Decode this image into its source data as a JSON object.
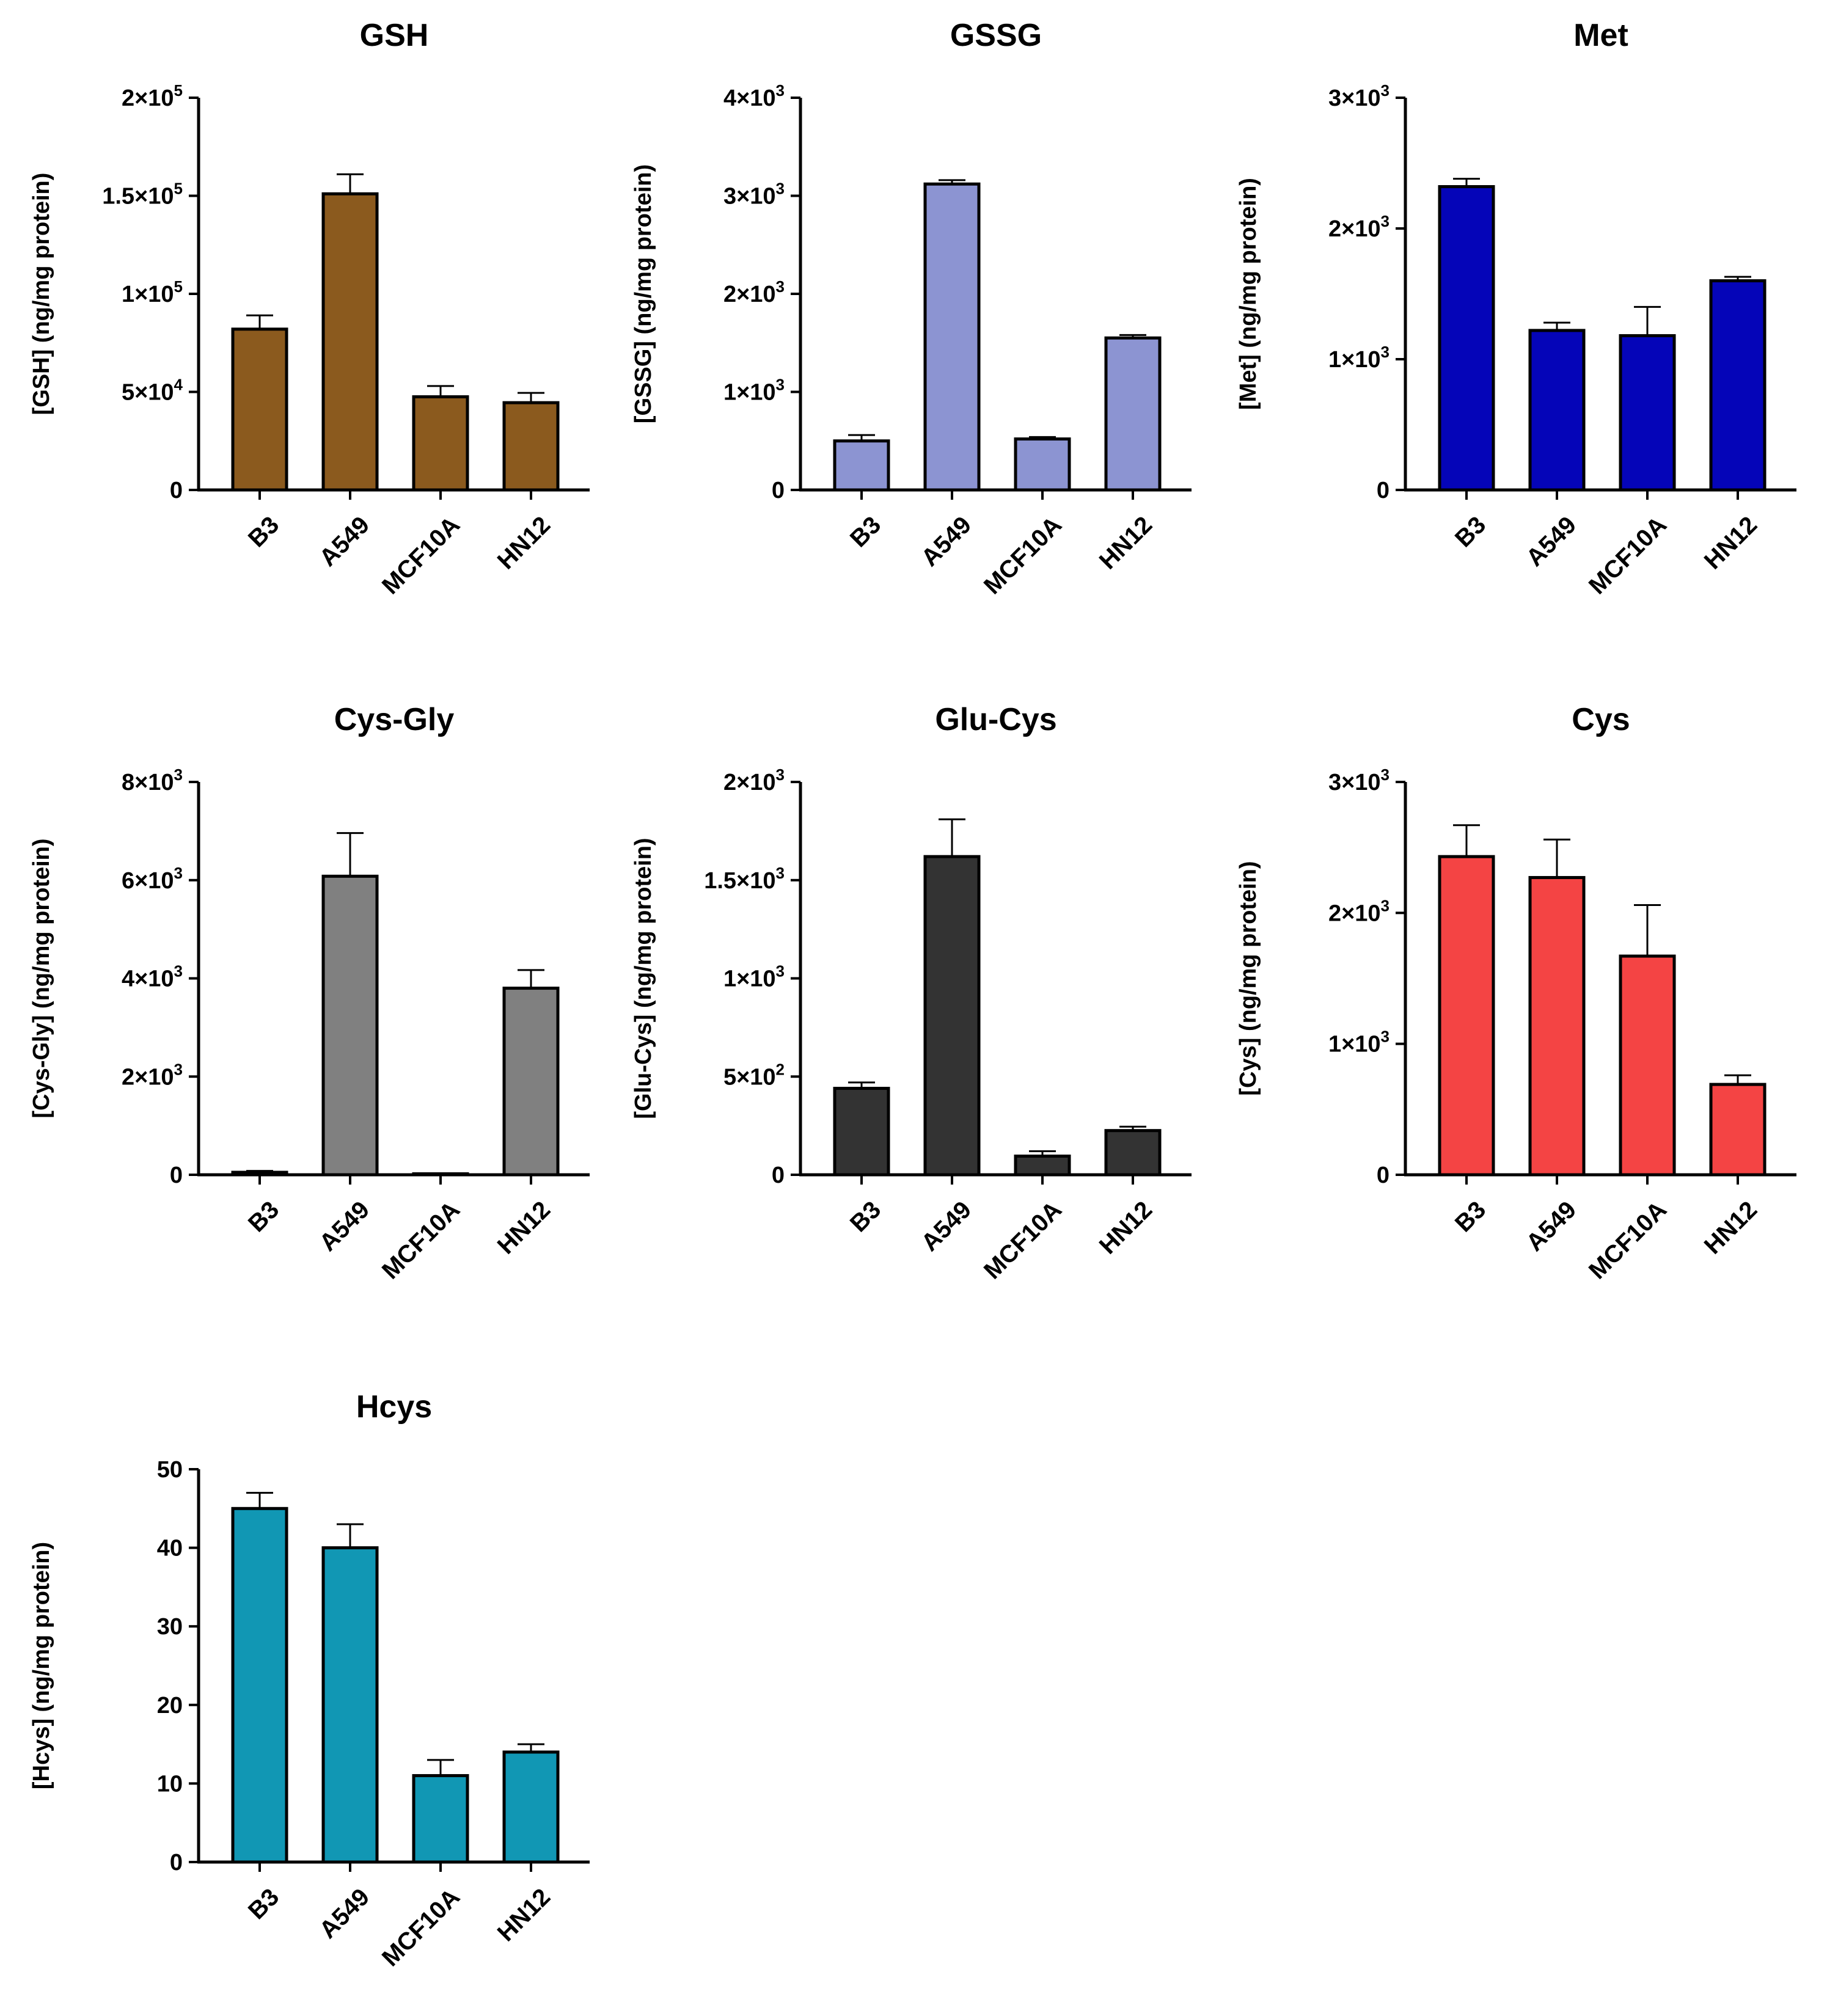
{
  "chart_data": [
    {
      "type": "bar",
      "title": "GSH",
      "ylabel": "[GSH] (ng/mg protein)",
      "categories": [
        "B3",
        "A549",
        "MCF10A",
        "HN12"
      ],
      "values": [
        82000,
        151000,
        47500,
        44500
      ],
      "errors": [
        7000,
        10000,
        5500,
        5000
      ],
      "ylim": [
        0,
        200000
      ],
      "yticks": [
        0,
        50000,
        100000,
        150000,
        200000
      ],
      "ytick_labels": [
        {
          "base": "0",
          "sup": ""
        },
        {
          "base": "5×10",
          "sup": "4"
        },
        {
          "base": "1×10",
          "sup": "5"
        },
        {
          "base": "1.5×10",
          "sup": "5"
        },
        {
          "base": "2×10",
          "sup": "5"
        }
      ],
      "color": "#8b5a1e"
    },
    {
      "type": "bar",
      "title": "GSSG",
      "ylabel": "[GSSG] (ng/mg protein)",
      "categories": [
        "B3",
        "A549",
        "MCF10A",
        "HN12"
      ],
      "values": [
        500,
        3120,
        520,
        1550
      ],
      "errors": [
        60,
        40,
        20,
        30
      ],
      "ylim": [
        0,
        4000
      ],
      "yticks": [
        0,
        1000,
        2000,
        3000,
        4000
      ],
      "ytick_labels": [
        {
          "base": "0",
          "sup": ""
        },
        {
          "base": "1×10",
          "sup": "3"
        },
        {
          "base": "2×10",
          "sup": "3"
        },
        {
          "base": "3×10",
          "sup": "3"
        },
        {
          "base": "4×10",
          "sup": "3"
        }
      ],
      "color": "#8c94d2"
    },
    {
      "type": "bar",
      "title": "Met",
      "ylabel": "[Met] (ng/mg protein)",
      "categories": [
        "B3",
        "A549",
        "MCF10A",
        "HN12"
      ],
      "values": [
        2320,
        1220,
        1180,
        1600
      ],
      "errors": [
        60,
        60,
        220,
        30
      ],
      "ylim": [
        0,
        3000
      ],
      "yticks": [
        0,
        1000,
        2000,
        3000
      ],
      "ytick_labels": [
        {
          "base": "0",
          "sup": ""
        },
        {
          "base": "1×10",
          "sup": "3"
        },
        {
          "base": "2×10",
          "sup": "3"
        },
        {
          "base": "3×10",
          "sup": "3"
        }
      ],
      "color": "#0505b8"
    },
    {
      "type": "bar",
      "title": "Cys-Gly",
      "ylabel": "[Cys-Gly] (ng/mg protein)",
      "categories": [
        "B3",
        "A549",
        "MCF10A",
        "HN12"
      ],
      "values": [
        50,
        6080,
        20,
        3800
      ],
      "errors": [
        30,
        880,
        10,
        370
      ],
      "ylim": [
        0,
        8000
      ],
      "yticks": [
        0,
        2000,
        4000,
        6000,
        8000
      ],
      "ytick_labels": [
        {
          "base": "0",
          "sup": ""
        },
        {
          "base": "2×10",
          "sup": "3"
        },
        {
          "base": "4×10",
          "sup": "3"
        },
        {
          "base": "6×10",
          "sup": "3"
        },
        {
          "base": "8×10",
          "sup": "3"
        }
      ],
      "color": "#808080"
    },
    {
      "type": "bar",
      "title": "Glu-Cys",
      "ylabel": "[Glu-Cys] (ng/mg protein)",
      "categories": [
        "B3",
        "A549",
        "MCF10A",
        "HN12"
      ],
      "values": [
        440,
        1620,
        95,
        225
      ],
      "errors": [
        30,
        190,
        25,
        20
      ],
      "ylim": [
        0,
        2000
      ],
      "yticks": [
        0,
        500,
        1000,
        1500,
        2000
      ],
      "ytick_labels": [
        {
          "base": "0",
          "sup": ""
        },
        {
          "base": "5×10",
          "sup": "2"
        },
        {
          "base": "1×10",
          "sup": "3"
        },
        {
          "base": "1.5×10",
          "sup": "3"
        },
        {
          "base": "2×10",
          "sup": "3"
        }
      ],
      "color": "#333333"
    },
    {
      "type": "bar",
      "title": "Cys",
      "ylabel": "[Cys] (ng/mg protein)",
      "categories": [
        "B3",
        "A549",
        "MCF10A",
        "HN12"
      ],
      "values": [
        2430,
        2270,
        1670,
        690
      ],
      "errors": [
        240,
        290,
        390,
        70
      ],
      "ylim": [
        0,
        3000
      ],
      "yticks": [
        0,
        1000,
        2000,
        3000
      ],
      "ytick_labels": [
        {
          "base": "0",
          "sup": ""
        },
        {
          "base": "1×10",
          "sup": "3"
        },
        {
          "base": "2×10",
          "sup": "3"
        },
        {
          "base": "3×10",
          "sup": "3"
        }
      ],
      "color": "#f44444"
    },
    {
      "type": "bar",
      "title": "Hcys",
      "ylabel": "[Hcys] (ng/mg protein)",
      "categories": [
        "B3",
        "A549",
        "MCF10A",
        "HN12"
      ],
      "values": [
        45,
        40,
        11,
        14
      ],
      "errors": [
        2,
        3,
        2,
        1
      ],
      "ylim": [
        0,
        50
      ],
      "yticks": [
        0,
        10,
        20,
        30,
        40,
        50
      ],
      "ytick_labels": [
        {
          "base": "0",
          "sup": ""
        },
        {
          "base": "10",
          "sup": ""
        },
        {
          "base": "20",
          "sup": ""
        },
        {
          "base": "30",
          "sup": ""
        },
        {
          "base": "40",
          "sup": ""
        },
        {
          "base": "50",
          "sup": ""
        }
      ],
      "color": "#1197b4"
    }
  ]
}
